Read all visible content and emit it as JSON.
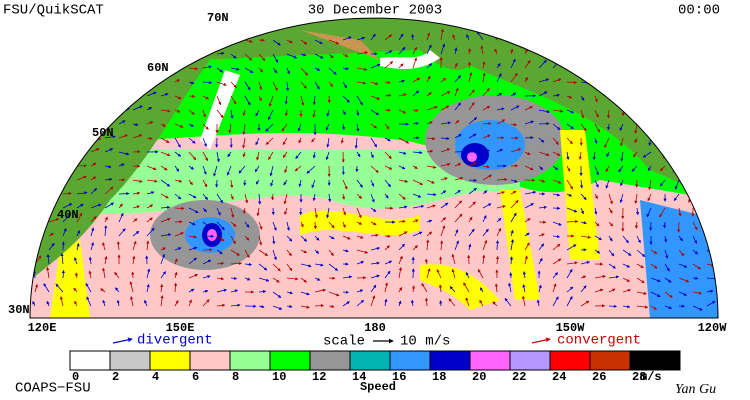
{
  "header": {
    "left": "FSU/QuikSCAT",
    "title": "30 December 2003",
    "time": "00:00"
  },
  "map": {
    "lat_labels": [
      "70N",
      "60N",
      "50N",
      "40N",
      "30N"
    ],
    "lon_labels": [
      "120E",
      "150E",
      "180",
      "150W",
      "120W"
    ]
  },
  "legend": {
    "divergent": "divergent",
    "scale_label": "scale",
    "scale_value": "10 m/s",
    "convergent": "convergent"
  },
  "colorbar": {
    "ticks": [
      0,
      2,
      4,
      6,
      8,
      10,
      12,
      14,
      16,
      18,
      20,
      22,
      24,
      26,
      28
    ],
    "colors": [
      "#ffffff",
      "#c8c8c8",
      "#ffff00",
      "#ffc8c8",
      "#96ff96",
      "#00ff00",
      "#969696",
      "#00b4b4",
      "#3296ff",
      "#0000c8",
      "#ff64ff",
      "#b496ff",
      "#ff0000",
      "#c83200",
      "#000000"
    ],
    "unit": "m/s",
    "label": "Speed"
  },
  "footer": {
    "left": "COAPS−FSU",
    "signature": "Yan Gu"
  }
}
